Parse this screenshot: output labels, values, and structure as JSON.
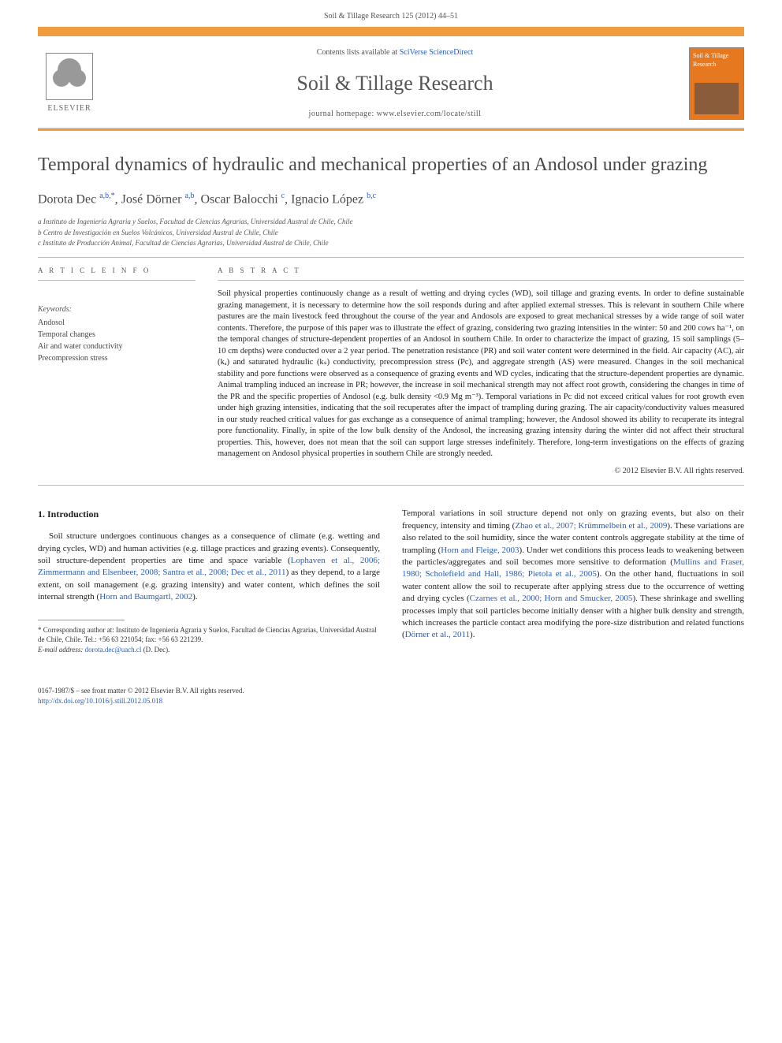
{
  "header": {
    "citation": "Soil & Tillage Research 125 (2012) 44–51"
  },
  "banner": {
    "contents_prefix": "Contents lists available at ",
    "contents_link": "SciVerse ScienceDirect",
    "journal_name": "Soil & Tillage Research",
    "homepage_label": "journal homepage: www.elsevier.com/locate/still",
    "elsevier_label": "ELSEVIER",
    "cover_title": "Soil & Tillage Research"
  },
  "article": {
    "title": "Temporal dynamics of hydraulic and mechanical properties of an Andosol under grazing",
    "authors_html": "Dorota Dec <sup>a,b,*</sup>, José Dörner <sup>a,b</sup>, Oscar Balocchi <sup>c</sup>, Ignacio López <sup>b,c</sup>",
    "affiliations": [
      "a Instituto de Ingeniería Agraria y Suelos, Facultad de Ciencias Agrarias, Universidad Austral de Chile, Chile",
      "b Centro de Investigación en Suelos Volcánicos, Universidad Austral de Chile, Chile",
      "c Instituto de Producción Animal, Facultad de Ciencias Agrarias, Universidad Austral de Chile, Chile"
    ]
  },
  "info": {
    "heading": "A R T I C L E   I N F O",
    "keywords_label": "Keywords:",
    "keywords": [
      "Andosol",
      "Temporal changes",
      "Air and water conductivity",
      "Precompression stress"
    ]
  },
  "abstract": {
    "heading": "A B S T R A C T",
    "text": "Soil physical properties continuously change as a result of wetting and drying cycles (WD), soil tillage and grazing events. In order to define sustainable grazing management, it is necessary to determine how the soil responds during and after applied external stresses. This is relevant in southern Chile where pastures are the main livestock feed throughout the course of the year and Andosols are exposed to great mechanical stresses by a wide range of soil water contents. Therefore, the purpose of this paper was to illustrate the effect of grazing, considering two grazing intensities in the winter: 50 and 200 cows ha⁻¹, on the temporal changes of structure-dependent properties of an Andosol in southern Chile. In order to characterize the impact of grazing, 15 soil samplings (5–10 cm depths) were conducted over a 2 year period. The penetration resistance (PR) and soil water content were determined in the field. Air capacity (AC), air (kₐ) and saturated hydraulic (kₛ) conductivity, precompression stress (Pc), and aggregate strength (AS) were measured. Changes in the soil mechanical stability and pore functions were observed as a consequence of grazing events and WD cycles, indicating that the structure-dependent properties are dynamic. Animal trampling induced an increase in PR; however, the increase in soil mechanical strength may not affect root growth, considering the changes in time of the PR and the specific properties of Andosol (e.g. bulk density <0.9 Mg m⁻³). Temporal variations in Pc did not exceed critical values for root growth even under high grazing intensities, indicating that the soil recuperates after the impact of trampling during grazing. The air capacity/conductivity values measured in our study reached critical values for gas exchange as a consequence of animal trampling; however, the Andosol showed its ability to recuperate its integral pore functionality. Finally, in spite of the low bulk density of the Andosol, the increasing grazing intensity during the winter did not affect their structural properties. This, however, does not mean that the soil can support large stresses indefinitely. Therefore, long-term investigations on the effects of grazing management on Andosol physical properties in southern Chile are strongly needed.",
    "copyright": "© 2012 Elsevier B.V. All rights reserved."
  },
  "body": {
    "section_heading": "1. Introduction",
    "col1_p1_a": "Soil structure undergoes continuous changes as a consequence of climate (e.g. wetting and drying cycles, WD) and human activities (e.g. tillage practices and grazing events). Consequently, soil structure-dependent properties are time and space variable (",
    "col1_link1": "Lophaven et al., 2006; Zimmermann and Elsenbeer, 2008; Santra et al., 2008; Dec et al., 2011",
    "col1_p1_b": ") as they depend, to a large extent, on soil management (e.g. grazing intensity) and water content, which defines the soil internal strength (",
    "col1_link2": "Horn and Baumgartl, 2002",
    "col1_p1_c": ").",
    "col2_p1_a": "Temporal variations in soil structure depend not only on grazing events, but also on their frequency, intensity and timing (",
    "col2_link1": "Zhao et al., 2007; Krümmelbein et al., 2009",
    "col2_p1_b": "). These variations are also related to the soil humidity, since the water content controls aggregate stability at the time of trampling (",
    "col2_link2": "Horn and Fleige, 2003",
    "col2_p1_c": "). Under wet conditions this process leads to weakening between the particles/aggregates and soil becomes more sensitive to deformation (",
    "col2_link3": "Mullins and Fraser, 1980; Scholefield and Hall, 1986; Pietola et al., 2005",
    "col2_p1_d": "). On the other hand, fluctuations in soil water content allow the soil to recuperate after applying stress due to the occurrence of wetting and drying cycles (",
    "col2_link4": "Czarnes et al., 2000; Horn and Smucker, 2005",
    "col2_p1_e": "). These shrinkage and swelling processes imply that soil particles become initially denser with a higher bulk density and strength, which increases the particle contact area modifying the pore-size distribution and related functions (",
    "col2_link5": "Dörner et al., 2011",
    "col2_p1_f": ")."
  },
  "footnote": {
    "corresponding": "* Corresponding author at: Instituto de Ingeniería Agraria y Suelos, Facultad de Ciencias Agrarias, Universidad Austral de Chile, Chile. Tel.: +56 63 221054; fax: +56 63 221239.",
    "email_label": "E-mail address: ",
    "email": "dorota.dec@uach.cl",
    "email_suffix": " (D. Dec)."
  },
  "footer": {
    "issn_line": "0167-1987/$ – see front matter © 2012 Elsevier B.V. All rights reserved.",
    "doi_label": "http://dx.doi.org/",
    "doi": "10.1016/j.still.2012.05.018"
  },
  "colors": {
    "orange": "#f19c3e",
    "link": "#2a5db0",
    "text": "#333333",
    "heading_gray": "#494949"
  }
}
